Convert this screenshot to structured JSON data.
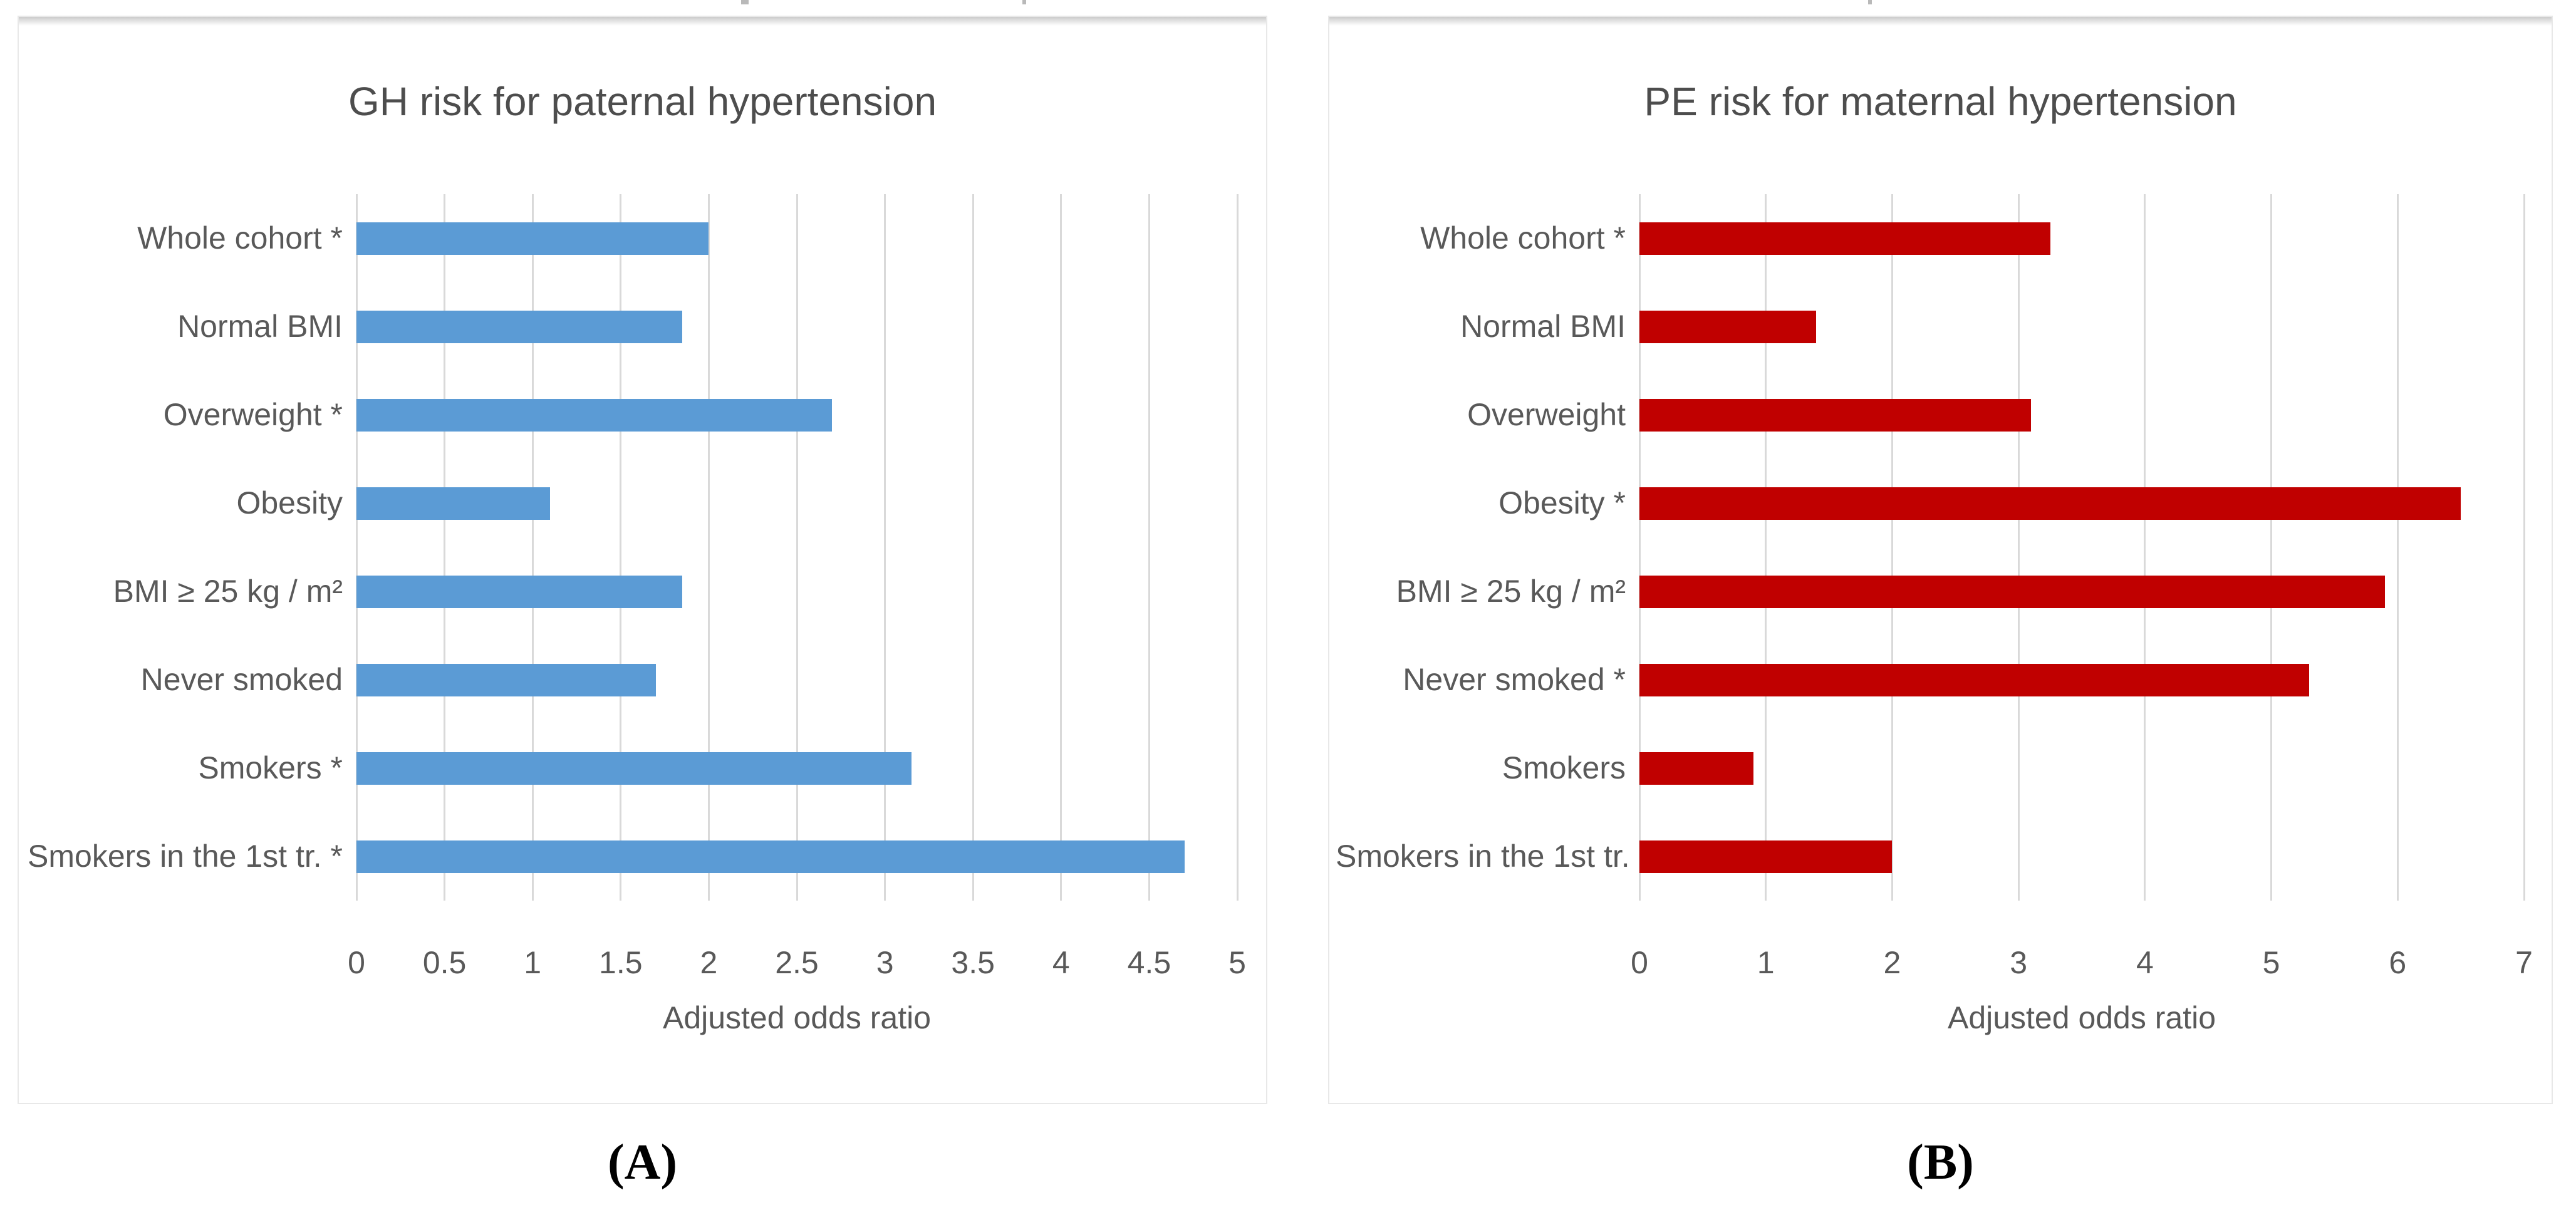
{
  "captions": {
    "a": "(A)",
    "b": "(B)"
  },
  "chart_data": [
    {
      "type": "bar",
      "orientation": "horizontal",
      "title": "GH risk for paternal hypertension",
      "xlabel": "Adjusted odds ratio",
      "categories": [
        "Whole cohort *",
        "Normal BMI",
        "Overweight *",
        "Obesity",
        "BMI ≥ 25 kg / m²",
        "Never smoked",
        "Smokers *",
        "Smokers in the 1st tr. *"
      ],
      "values": [
        2.0,
        1.85,
        2.7,
        1.1,
        1.85,
        1.7,
        3.15,
        4.7
      ],
      "xlim": [
        0,
        5
      ],
      "xticks": [
        "0",
        "0.5",
        "1",
        "1.5",
        "2",
        "2.5",
        "3",
        "3.5",
        "4",
        "4.5",
        "5"
      ],
      "bar_color": "#5B9BD5",
      "grid": true,
      "legend": false,
      "caption": "(A)"
    },
    {
      "type": "bar",
      "orientation": "horizontal",
      "title": "PE risk for maternal hypertension",
      "xlabel": "Adjusted odds ratio",
      "categories": [
        "Whole cohort *",
        "Normal BMI",
        "Overweight",
        "Obesity *",
        "BMI ≥ 25 kg / m²",
        "Never smoked *",
        "Smokers",
        "Smokers in the 1st tr."
      ],
      "values": [
        3.25,
        1.4,
        3.1,
        6.5,
        5.9,
        5.3,
        0.9,
        2.0
      ],
      "xlim": [
        0,
        7
      ],
      "xticks": [
        "0",
        "1",
        "2",
        "3",
        "4",
        "5",
        "6",
        "7"
      ],
      "bar_color": "#C00000",
      "grid": true,
      "legend": false,
      "caption": "(B)"
    }
  ],
  "styles": {
    "gridline_color": "#d9d9d9",
    "text_color": "#595959",
    "title_color": "#4d4d4d",
    "panel_border_color": "#e8e8e8",
    "bar_color_a": "#5B9BD5",
    "bar_color_b": "#C00000"
  }
}
